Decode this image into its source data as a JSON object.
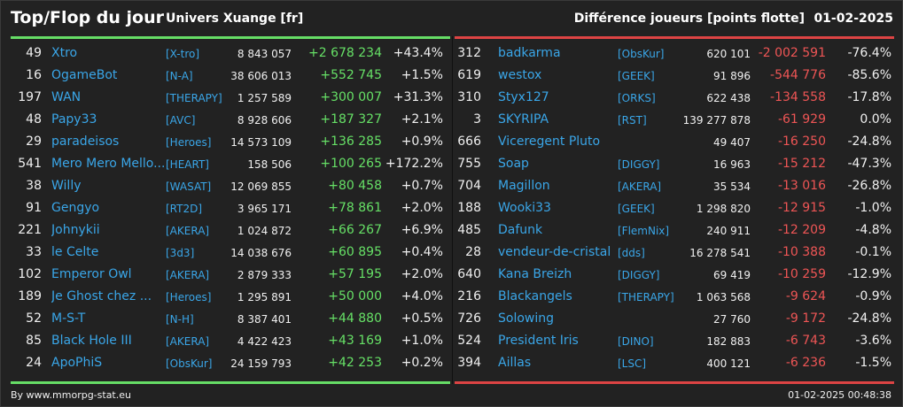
{
  "header": {
    "title": "Top/Flop du jour",
    "universe": "Univers Xuange [fr]",
    "diff_label": "Différence joueurs [points flotte]",
    "date": "01-02-2025"
  },
  "colors": {
    "top_accent": "#66dd66",
    "flop_accent": "#dd4444",
    "name_link": "#3aa6e8",
    "gain": "#66e066",
    "loss": "#ee5555",
    "background": "#222222"
  },
  "top": [
    {
      "rank": "49",
      "name": "Xtro",
      "ally": "[X-tro]",
      "points": "8 843 057",
      "change": "+2 678 234",
      "pct": "+43.4%"
    },
    {
      "rank": "16",
      "name": "OgameBot",
      "ally": "[N-A]",
      "points": "38 606 013",
      "change": "+552 745",
      "pct": "+1.5%"
    },
    {
      "rank": "197",
      "name": "WAN",
      "ally": "[THERAPY]",
      "points": "1 257 589",
      "change": "+300 007",
      "pct": "+31.3%"
    },
    {
      "rank": "48",
      "name": "Papy33",
      "ally": "[AVC]",
      "points": "8 928 606",
      "change": "+187 327",
      "pct": "+2.1%"
    },
    {
      "rank": "29",
      "name": "paradeisos",
      "ally": "[Heroes]",
      "points": "14 573 109",
      "change": "+136 285",
      "pct": "+0.9%"
    },
    {
      "rank": "541",
      "name": "Mero Mero Mello...",
      "ally": "[HEART]",
      "points": "158 506",
      "change": "+100 265",
      "pct": "+172.2%"
    },
    {
      "rank": "38",
      "name": "Willy",
      "ally": "[WASAT]",
      "points": "12 069 855",
      "change": "+80 458",
      "pct": "+0.7%"
    },
    {
      "rank": "91",
      "name": "Gengyo",
      "ally": "[RT2D]",
      "points": "3 965 171",
      "change": "+78 861",
      "pct": "+2.0%"
    },
    {
      "rank": "221",
      "name": "Johnykii",
      "ally": "[AKERA]",
      "points": "1 024 872",
      "change": "+66 267",
      "pct": "+6.9%"
    },
    {
      "rank": "33",
      "name": "le Celte",
      "ally": "[3d3]",
      "points": "14 038 676",
      "change": "+60 895",
      "pct": "+0.4%"
    },
    {
      "rank": "102",
      "name": "Emperor Owl",
      "ally": "[AKERA]",
      "points": "2 879 333",
      "change": "+57 195",
      "pct": "+2.0%"
    },
    {
      "rank": "189",
      "name": "Je Ghost chez ...",
      "ally": "[Heroes]",
      "points": "1 295 891",
      "change": "+50 000",
      "pct": "+4.0%"
    },
    {
      "rank": "52",
      "name": "M-S-T",
      "ally": "[N-H]",
      "points": "8 387 401",
      "change": "+44 880",
      "pct": "+0.5%"
    },
    {
      "rank": "85",
      "name": "Black Hole III",
      "ally": "[AKERA]",
      "points": "4 422 423",
      "change": "+43 169",
      "pct": "+1.0%"
    },
    {
      "rank": "24",
      "name": "ApoPhiS",
      "ally": "[ObsKur]",
      "points": "24 159 793",
      "change": "+42 253",
      "pct": "+0.2%"
    }
  ],
  "flop": [
    {
      "rank": "312",
      "name": "badkarma",
      "ally": "[ObsKur]",
      "points": "620 101",
      "change": "-2 002 591",
      "pct": "-76.4%"
    },
    {
      "rank": "619",
      "name": "westox",
      "ally": "[GEEK]",
      "points": "91 896",
      "change": "-544 776",
      "pct": "-85.6%"
    },
    {
      "rank": "310",
      "name": "Styx127",
      "ally": "[ORKS]",
      "points": "622 438",
      "change": "-134 558",
      "pct": "-17.8%"
    },
    {
      "rank": "3",
      "name": "SKYRIPA",
      "ally": "[RST]",
      "points": "139 277 878",
      "change": "-61 929",
      "pct": "0.0%"
    },
    {
      "rank": "666",
      "name": "Viceregent Pluto",
      "ally": "",
      "points": "49 407",
      "change": "-16 250",
      "pct": "-24.8%"
    },
    {
      "rank": "755",
      "name": "Soap",
      "ally": "[DIGGY]",
      "points": "16 963",
      "change": "-15 212",
      "pct": "-47.3%"
    },
    {
      "rank": "704",
      "name": "Magillon",
      "ally": "[AKERA]",
      "points": "35 534",
      "change": "-13 016",
      "pct": "-26.8%"
    },
    {
      "rank": "188",
      "name": "Wooki33",
      "ally": "[GEEK]",
      "points": "1 298 820",
      "change": "-12 915",
      "pct": "-1.0%"
    },
    {
      "rank": "485",
      "name": "Dafunk",
      "ally": "[FlemNix]",
      "points": "240 911",
      "change": "-12 209",
      "pct": "-4.8%"
    },
    {
      "rank": "28",
      "name": "vendeur-de-cristal",
      "ally": "[dds]",
      "points": "16 278 541",
      "change": "-10 388",
      "pct": "-0.1%"
    },
    {
      "rank": "640",
      "name": "Kana Breizh",
      "ally": "[DIGGY]",
      "points": "69 419",
      "change": "-10 259",
      "pct": "-12.9%"
    },
    {
      "rank": "216",
      "name": "Blackangels",
      "ally": "[THERAPY]",
      "points": "1 063 568",
      "change": "-9 624",
      "pct": "-0.9%"
    },
    {
      "rank": "726",
      "name": "Solowing",
      "ally": "",
      "points": "27 760",
      "change": "-9 172",
      "pct": "-24.8%"
    },
    {
      "rank": "524",
      "name": "President Iris",
      "ally": "[DINO]",
      "points": "182 883",
      "change": "-6 743",
      "pct": "-3.6%"
    },
    {
      "rank": "394",
      "name": "Aillas",
      "ally": "[LSC]",
      "points": "400 121",
      "change": "-6 236",
      "pct": "-1.5%"
    }
  ],
  "footer": {
    "credit": "By www.mmorpg-stat.eu",
    "timestamp": "01-02-2025 00:48:38"
  }
}
